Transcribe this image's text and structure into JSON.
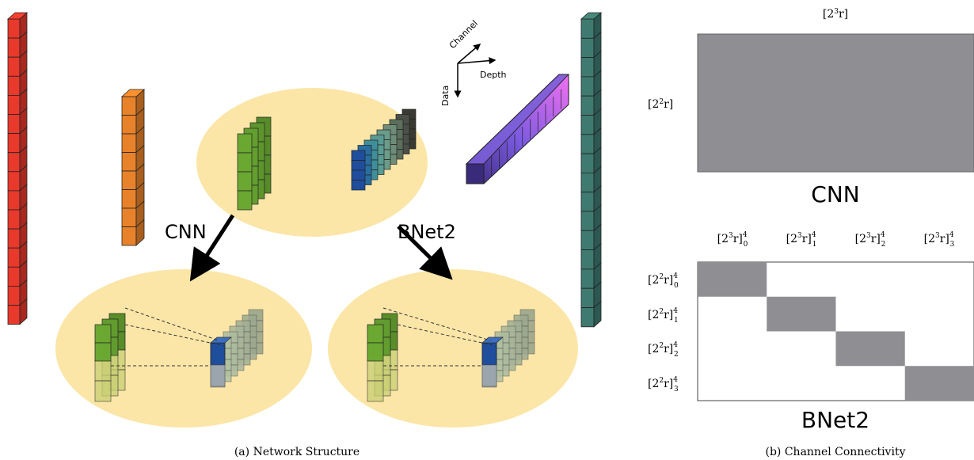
{
  "panel_a": {
    "caption": "(a) Network Structure",
    "arrow_left_label": "CNN",
    "arrow_right_label": "BNet2",
    "axes": {
      "channel": "Channel",
      "depth": "Depth",
      "data": "Data"
    },
    "colors": {
      "red": "#e8392c",
      "orange": "#e8822a",
      "teal": "#3f7a70",
      "green": "#6aa832",
      "blue": "#1f4e9c",
      "purple_start": "#3a2a7a",
      "purple_end": "#f070f0",
      "ellipse": "#fbe6a8"
    }
  },
  "panel_b": {
    "caption": "(b) Channel Connectivity",
    "cnn": {
      "title": "CNN",
      "col_label": "[2^3 r]",
      "row_label": "[2^2 r]",
      "fill": "#8f8e93"
    },
    "bnet2": {
      "title": "BNet2",
      "col_labels": [
        "[2^3 r]^4_0",
        "[2^3 r]^4_1",
        "[2^3 r]^4_2",
        "[2^3 r]^4_3"
      ],
      "row_labels": [
        "[2^2 r]^4_0",
        "[2^2 r]^4_1",
        "[2^2 r]^4_2",
        "[2^2 r]^4_3"
      ],
      "fill": "#8f8e93"
    }
  }
}
